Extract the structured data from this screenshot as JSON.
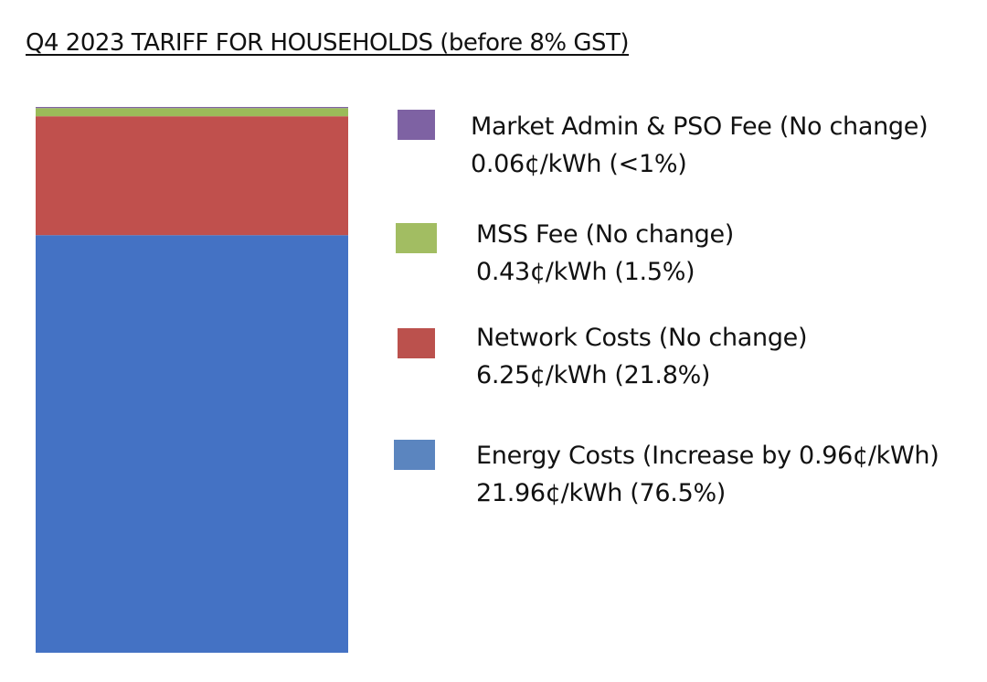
{
  "chart_data": {
    "type": "bar",
    "stacked": true,
    "title": "Q4 2023 TARIFF FOR HOUSEHOLDS (before 8% GST)",
    "xlabel": "",
    "ylabel": "",
    "unit": "¢/kWh",
    "categories": [
      ""
    ],
    "series": [
      {
        "name": "Energy Costs (Increase by 0.96¢/kWh)",
        "values": [
          21.96
        ],
        "value_label": "21.96¢/kWh (76.5%)",
        "color": "#4472C4",
        "legend_color": "#5B85BF"
      },
      {
        "name": "Network Costs (No change)",
        "values": [
          6.25
        ],
        "value_label": "6.25¢/kWh (21.8%)",
        "color": "#C0504D",
        "legend_color": "#BB514D"
      },
      {
        "name": "MSS Fee (No change)",
        "values": [
          0.43
        ],
        "value_label": "0.43¢/kWh (1.5%)",
        "color": "#9BBB59",
        "legend_color": "#A2BD62"
      },
      {
        "name": "Market Admin & PSO Fee (No change)",
        "values": [
          0.06
        ],
        "value_label": "0.06¢/kWh (<1%)",
        "color": "#8064A2",
        "legend_color": "#7E62A3"
      }
    ],
    "legend": "right",
    "grid": false
  }
}
